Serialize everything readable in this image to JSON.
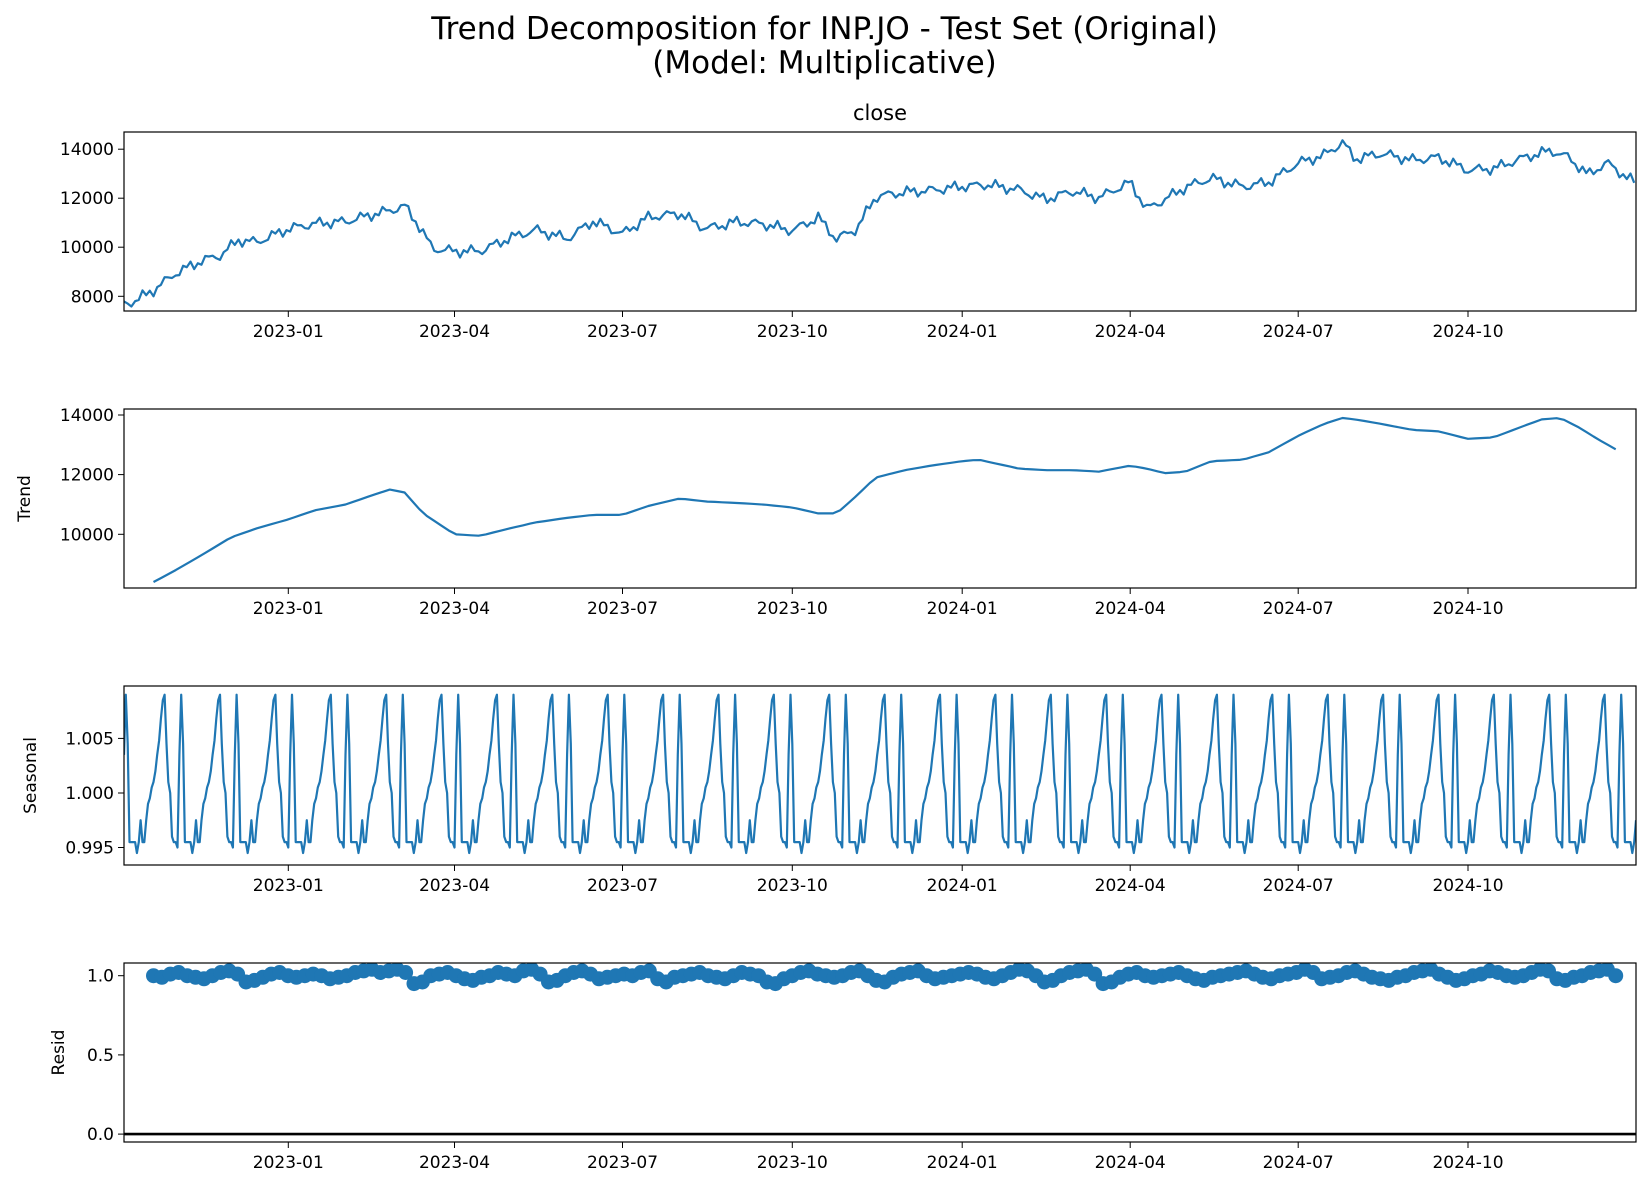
{
  "figure": {
    "title_line1": "Trend Decomposition for INP.JO - Test Set (Original)",
    "title_line2": "(Model: Multiplicative)",
    "line_color": "#1f77b4",
    "x_tick_labels": [
      "2023-01",
      "2023-04",
      "2023-07",
      "2023-10",
      "2024-01",
      "2024-04",
      "2024-07",
      "2024-10"
    ]
  },
  "chart_data": [
    {
      "type": "line",
      "title": "close",
      "ylabel": "",
      "x_range": [
        "2022-10-04",
        "2024-12-31"
      ],
      "ylim": [
        7400,
        14700
      ],
      "yticks": [
        8000,
        10000,
        12000,
        14000
      ],
      "ytick_labels": [
        "8000",
        "10000",
        "12000",
        "14000"
      ],
      "x": [
        "2022-10-04",
        "2022-10-10",
        "2022-10-20",
        "2022-11-01",
        "2022-11-15",
        "2022-11-25",
        "2022-12-05",
        "2022-12-15",
        "2023-01-01",
        "2023-01-15",
        "2023-02-01",
        "2023-02-15",
        "2023-02-25",
        "2023-03-05",
        "2023-03-12",
        "2023-03-20",
        "2023-04-01",
        "2023-04-15",
        "2023-05-01",
        "2023-05-15",
        "2023-06-01",
        "2023-06-15",
        "2023-07-01",
        "2023-07-15",
        "2023-08-01",
        "2023-08-15",
        "2023-09-01",
        "2023-09-15",
        "2023-10-01",
        "2023-10-15",
        "2023-10-25",
        "2023-11-05",
        "2023-11-15",
        "2023-12-01",
        "2023-12-15",
        "2024-01-01",
        "2024-01-15",
        "2024-02-01",
        "2024-02-15",
        "2024-03-01",
        "2024-03-15",
        "2024-04-01",
        "2024-04-10",
        "2024-04-20",
        "2024-05-01",
        "2024-05-15",
        "2024-06-01",
        "2024-06-15",
        "2024-07-01",
        "2024-07-15",
        "2024-07-25",
        "2024-08-01",
        "2024-08-15",
        "2024-09-01",
        "2024-09-15",
        "2024-10-01",
        "2024-10-15",
        "2024-11-01",
        "2024-11-15",
        "2024-11-25",
        "2024-12-05",
        "2024-12-15",
        "2024-12-31"
      ],
      "values": [
        7700,
        7850,
        8300,
        9000,
        9500,
        9700,
        10300,
        10200,
        10700,
        10900,
        11000,
        11300,
        11500,
        11700,
        11000,
        10000,
        9900,
        9900,
        10400,
        10700,
        10300,
        11000,
        10500,
        11200,
        11400,
        10800,
        11100,
        11000,
        10700,
        11200,
        10300,
        10700,
        12000,
        12200,
        12300,
        12500,
        12600,
        12400,
        12000,
        12300,
        12000,
        12600,
        11500,
        11900,
        12400,
        12800,
        12500,
        12700,
        13500,
        13800,
        14300,
        13600,
        13800,
        13500,
        13600,
        13100,
        13200,
        13700,
        14000,
        13700,
        13000,
        13500,
        12600
      ]
    },
    {
      "type": "line",
      "title": "",
      "ylabel": "Trend",
      "x_range": [
        "2022-10-04",
        "2024-12-31"
      ],
      "ylim": [
        8200,
        14200
      ],
      "yticks": [
        10000,
        12000,
        14000
      ],
      "ytick_labels": [
        "10000",
        "12000",
        "14000"
      ],
      "x": [
        "2022-10-20",
        "2022-11-01",
        "2022-11-15",
        "2022-12-01",
        "2022-12-15",
        "2023-01-01",
        "2023-01-15",
        "2023-02-01",
        "2023-02-15",
        "2023-02-25",
        "2023-03-05",
        "2023-03-15",
        "2023-04-01",
        "2023-04-15",
        "2023-05-01",
        "2023-05-15",
        "2023-06-01",
        "2023-06-15",
        "2023-07-01",
        "2023-07-15",
        "2023-08-01",
        "2023-08-15",
        "2023-09-01",
        "2023-09-15",
        "2023-10-01",
        "2023-10-15",
        "2023-10-25",
        "2023-11-05",
        "2023-11-15",
        "2023-12-01",
        "2023-12-15",
        "2024-01-01",
        "2024-01-10",
        "2024-02-01",
        "2024-02-15",
        "2024-03-01",
        "2024-03-15",
        "2024-04-01",
        "2024-04-10",
        "2024-04-20",
        "2024-05-01",
        "2024-05-15",
        "2024-06-01",
        "2024-06-15",
        "2024-07-01",
        "2024-07-15",
        "2024-07-25",
        "2024-08-01",
        "2024-08-15",
        "2024-09-01",
        "2024-09-15",
        "2024-10-01",
        "2024-10-15",
        "2024-11-01",
        "2024-11-10",
        "2024-11-20",
        "2024-12-01",
        "2024-12-10",
        "2024-12-20"
      ],
      "values": [
        8400,
        8800,
        9300,
        9900,
        10200,
        10500,
        10800,
        11000,
        11300,
        11500,
        11400,
        10700,
        10000,
        9950,
        10200,
        10400,
        10550,
        10650,
        10650,
        10950,
        11200,
        11100,
        11050,
        11000,
        10900,
        10700,
        10700,
        11300,
        11900,
        12150,
        12300,
        12450,
        12500,
        12200,
        12150,
        12150,
        12100,
        12300,
        12200,
        12050,
        12100,
        12450,
        12500,
        12750,
        13300,
        13700,
        13900,
        13850,
        13700,
        13500,
        13450,
        13200,
        13250,
        13650,
        13850,
        13900,
        13550,
        13200,
        12850
      ]
    },
    {
      "type": "line",
      "title": "",
      "ylabel": "Seasonal",
      "x_range": [
        "2022-10-04",
        "2024-12-31"
      ],
      "ylim": [
        0.9934,
        1.0098
      ],
      "yticks": [
        0.995,
        1.0,
        1.005
      ],
      "ytick_labels": [
        "0.995",
        "1.000",
        "1.005"
      ],
      "period_days": 30,
      "cycle_values": [
        1.0035,
        1.009,
        1.0045,
        0.9955,
        0.9955,
        0.9955,
        0.9955,
        0.9945,
        0.9955,
        0.9975,
        0.9955,
        0.9955,
        0.9975,
        0.999,
        0.9995,
        1.0005,
        1.001,
        1.002,
        1.0035,
        1.0048,
        1.0068,
        1.0085,
        1.009,
        1.0045,
        1.001,
        1.0,
        0.996,
        0.9955,
        0.9955,
        0.995
      ]
    },
    {
      "type": "scatter",
      "title": "",
      "ylabel": "Resid",
      "x_range": [
        "2022-10-04",
        "2024-12-31"
      ],
      "ylim": [
        -0.05,
        1.08
      ],
      "yticks": [
        0.0,
        0.5,
        1.0
      ],
      "ytick_labels": [
        "0.0",
        "0.5",
        "1.0"
      ],
      "baseline": 0.0,
      "x_start": "2022-10-20",
      "x_end": "2024-12-20",
      "values": [
        1.0,
        0.99,
        1.01,
        1.02,
        1.0,
        0.99,
        0.98,
        1.0,
        1.02,
        1.03,
        1.01,
        0.96,
        0.97,
        0.99,
        1.01,
        1.02,
        1.0,
        0.99,
        1.0,
        1.01,
        1.0,
        0.98,
        0.99,
        1.0,
        1.02,
        1.03,
        1.04,
        1.02,
        1.03,
        1.04,
        1.02,
        0.95,
        0.96,
        1.0,
        1.01,
        1.02,
        1.0,
        0.98,
        0.97,
        0.99,
        1.0,
        1.02,
        1.01,
        1.0,
        1.03,
        1.04,
        1.01,
        0.96,
        0.97,
        1.0,
        1.02,
        1.03,
        1.01,
        0.98,
        0.99,
        1.0,
        1.01,
        1.0,
        1.02,
        1.03,
        0.98,
        0.96,
        0.99,
        1.0,
        1.01,
        1.02,
        1.0,
        0.99,
        0.98,
        1.0,
        1.02,
        1.01,
        1.0,
        0.96,
        0.95,
        0.98,
        1.0,
        1.02,
        1.03,
        1.01,
        1.0,
        0.99,
        1.0,
        1.02,
        1.03,
        1.0,
        0.97,
        0.96,
        0.99,
        1.01,
        1.02,
        1.03,
        1.0,
        0.98,
        0.99,
        1.0,
        1.01,
        1.02,
        1.01,
        0.99,
        0.98,
        1.0,
        1.02,
        1.04,
        1.03,
        1.0,
        0.96,
        0.97,
        1.0,
        1.02,
        1.03,
        1.04,
        1.01,
        0.95,
        0.96,
        0.99,
        1.01,
        1.02,
        1.0,
        0.99,
        1.0,
        1.01,
        1.02,
        1.0,
        0.98,
        0.97,
        0.99,
        1.0,
        1.01,
        1.02,
        1.03,
        1.01,
        0.99,
        0.98,
        1.0,
        1.01,
        1.02,
        1.04,
        1.02,
        0.98,
        0.99,
        1.0,
        1.02,
        1.03,
        1.01,
        0.99,
        0.98,
        0.97,
        0.99,
        1.0,
        1.02,
        1.03,
        1.04,
        1.01,
        0.99,
        0.97,
        0.98,
        1.0,
        1.01,
        1.03,
        1.02,
        1.0,
        0.99,
        1.0,
        1.02,
        1.04,
        1.03,
        0.98,
        0.97,
        0.99,
        1.0,
        1.02,
        1.03,
        1.04,
        1.0
      ]
    }
  ]
}
